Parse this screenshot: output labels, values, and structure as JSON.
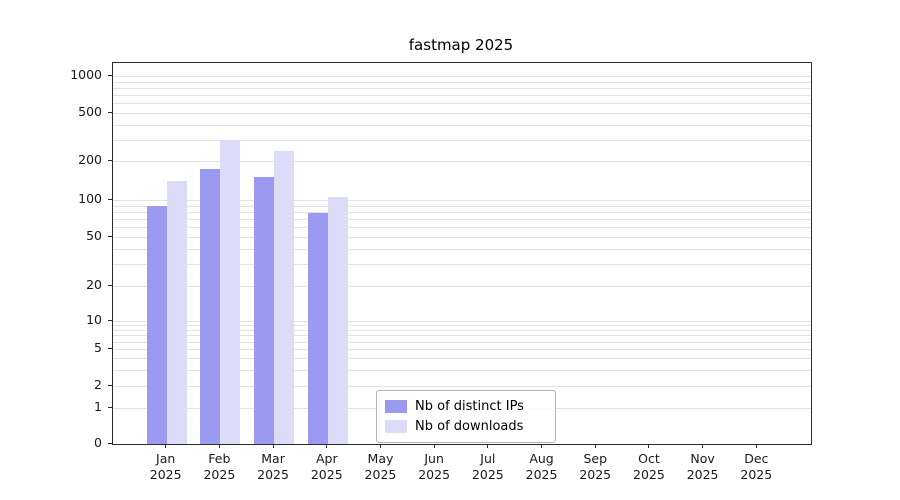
{
  "chart_data": {
    "type": "bar",
    "title": "fastmap 2025",
    "categories": [
      "Jan",
      "Feb",
      "Mar",
      "Apr",
      "May",
      "Jun",
      "Jul",
      "Aug",
      "Sep",
      "Oct",
      "Nov",
      "Dec"
    ],
    "x_year": "2025",
    "series": [
      {
        "name": "Nb of distinct IPs",
        "color": "#9a9af0",
        "values": [
          90,
          175,
          150,
          78,
          null,
          null,
          null,
          null,
          null,
          null,
          null,
          null
        ]
      },
      {
        "name": "Nb of downloads",
        "color": "#dcdcf8",
        "values": [
          140,
          300,
          240,
          105,
          null,
          null,
          null,
          null,
          null,
          null,
          null,
          null
        ]
      }
    ],
    "yscale": "symlog",
    "yticks": [
      0,
      1,
      2,
      5,
      10,
      20,
      50,
      100,
      200,
      500,
      1000
    ],
    "ylim": [
      0,
      1400
    ],
    "grid": "horizontal, major and minor, light gray",
    "legend_position": "lower center inside axes",
    "colors": {
      "grid": "#e2e2e2",
      "axis": "#2b2b2b",
      "background": "#ffffff"
    }
  }
}
